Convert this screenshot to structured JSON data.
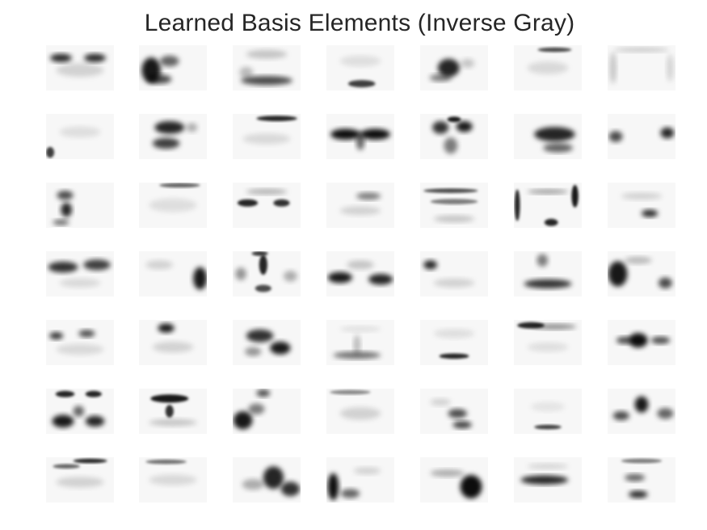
{
  "figure": {
    "title": "Learned Basis Elements (Inverse Gray)"
  },
  "mosaic": {
    "rows": 7,
    "cols": 7,
    "colormap": "gray_r",
    "background": "#ffffff",
    "ink": "#000000",
    "tiles": [
      {
        "motif": "brow-pair"
      },
      {
        "motif": "left-cheek-blob"
      },
      {
        "motif": "lower-arc"
      },
      {
        "motif": "bottom-bar-faint"
      },
      {
        "motif": "center-blot"
      },
      {
        "motif": "top-line-faint"
      },
      {
        "motif": "frame-faint"
      },
      {
        "motif": "corner-faint"
      },
      {
        "motif": "center-smudge"
      },
      {
        "motif": "upper-right-bar"
      },
      {
        "motif": "wing-v"
      },
      {
        "motif": "butterfly"
      },
      {
        "motif": "right-blob"
      },
      {
        "motif": "side-dots"
      },
      {
        "motif": "left-squiggle"
      },
      {
        "motif": "top-line-light"
      },
      {
        "motif": "eye-pair"
      },
      {
        "motif": "right-dash"
      },
      {
        "motif": "double-line"
      },
      {
        "motif": "frame-right"
      },
      {
        "motif": "right-dot"
      },
      {
        "motif": "brow-arc"
      },
      {
        "motif": "right-corner-blob"
      },
      {
        "motif": "pillar"
      },
      {
        "motif": "mid-pair"
      },
      {
        "motif": "left-spot"
      },
      {
        "motif": "mouth-bar"
      },
      {
        "motif": "left-blob-block"
      },
      {
        "motif": "dots-pair"
      },
      {
        "motif": "left-dash"
      },
      {
        "motif": "diagonal-x"
      },
      {
        "motif": "lips-faint"
      },
      {
        "motif": "low-line"
      },
      {
        "motif": "top-arc"
      },
      {
        "motif": "mid-blot"
      },
      {
        "motif": "face-dots"
      },
      {
        "motif": "brow-heavy"
      },
      {
        "motif": "left-low-blob"
      },
      {
        "motif": "top-right-faint"
      },
      {
        "motif": "chin-dots"
      },
      {
        "motif": "low-dash"
      },
      {
        "motif": "center-stack"
      },
      {
        "motif": "top-brow"
      },
      {
        "motif": "top-brow-faint"
      },
      {
        "motif": "right-stroke"
      },
      {
        "motif": "left-stroke"
      },
      {
        "motif": "right-heavy"
      },
      {
        "motif": "mid-bar"
      },
      {
        "motif": "low-stack"
      }
    ]
  }
}
